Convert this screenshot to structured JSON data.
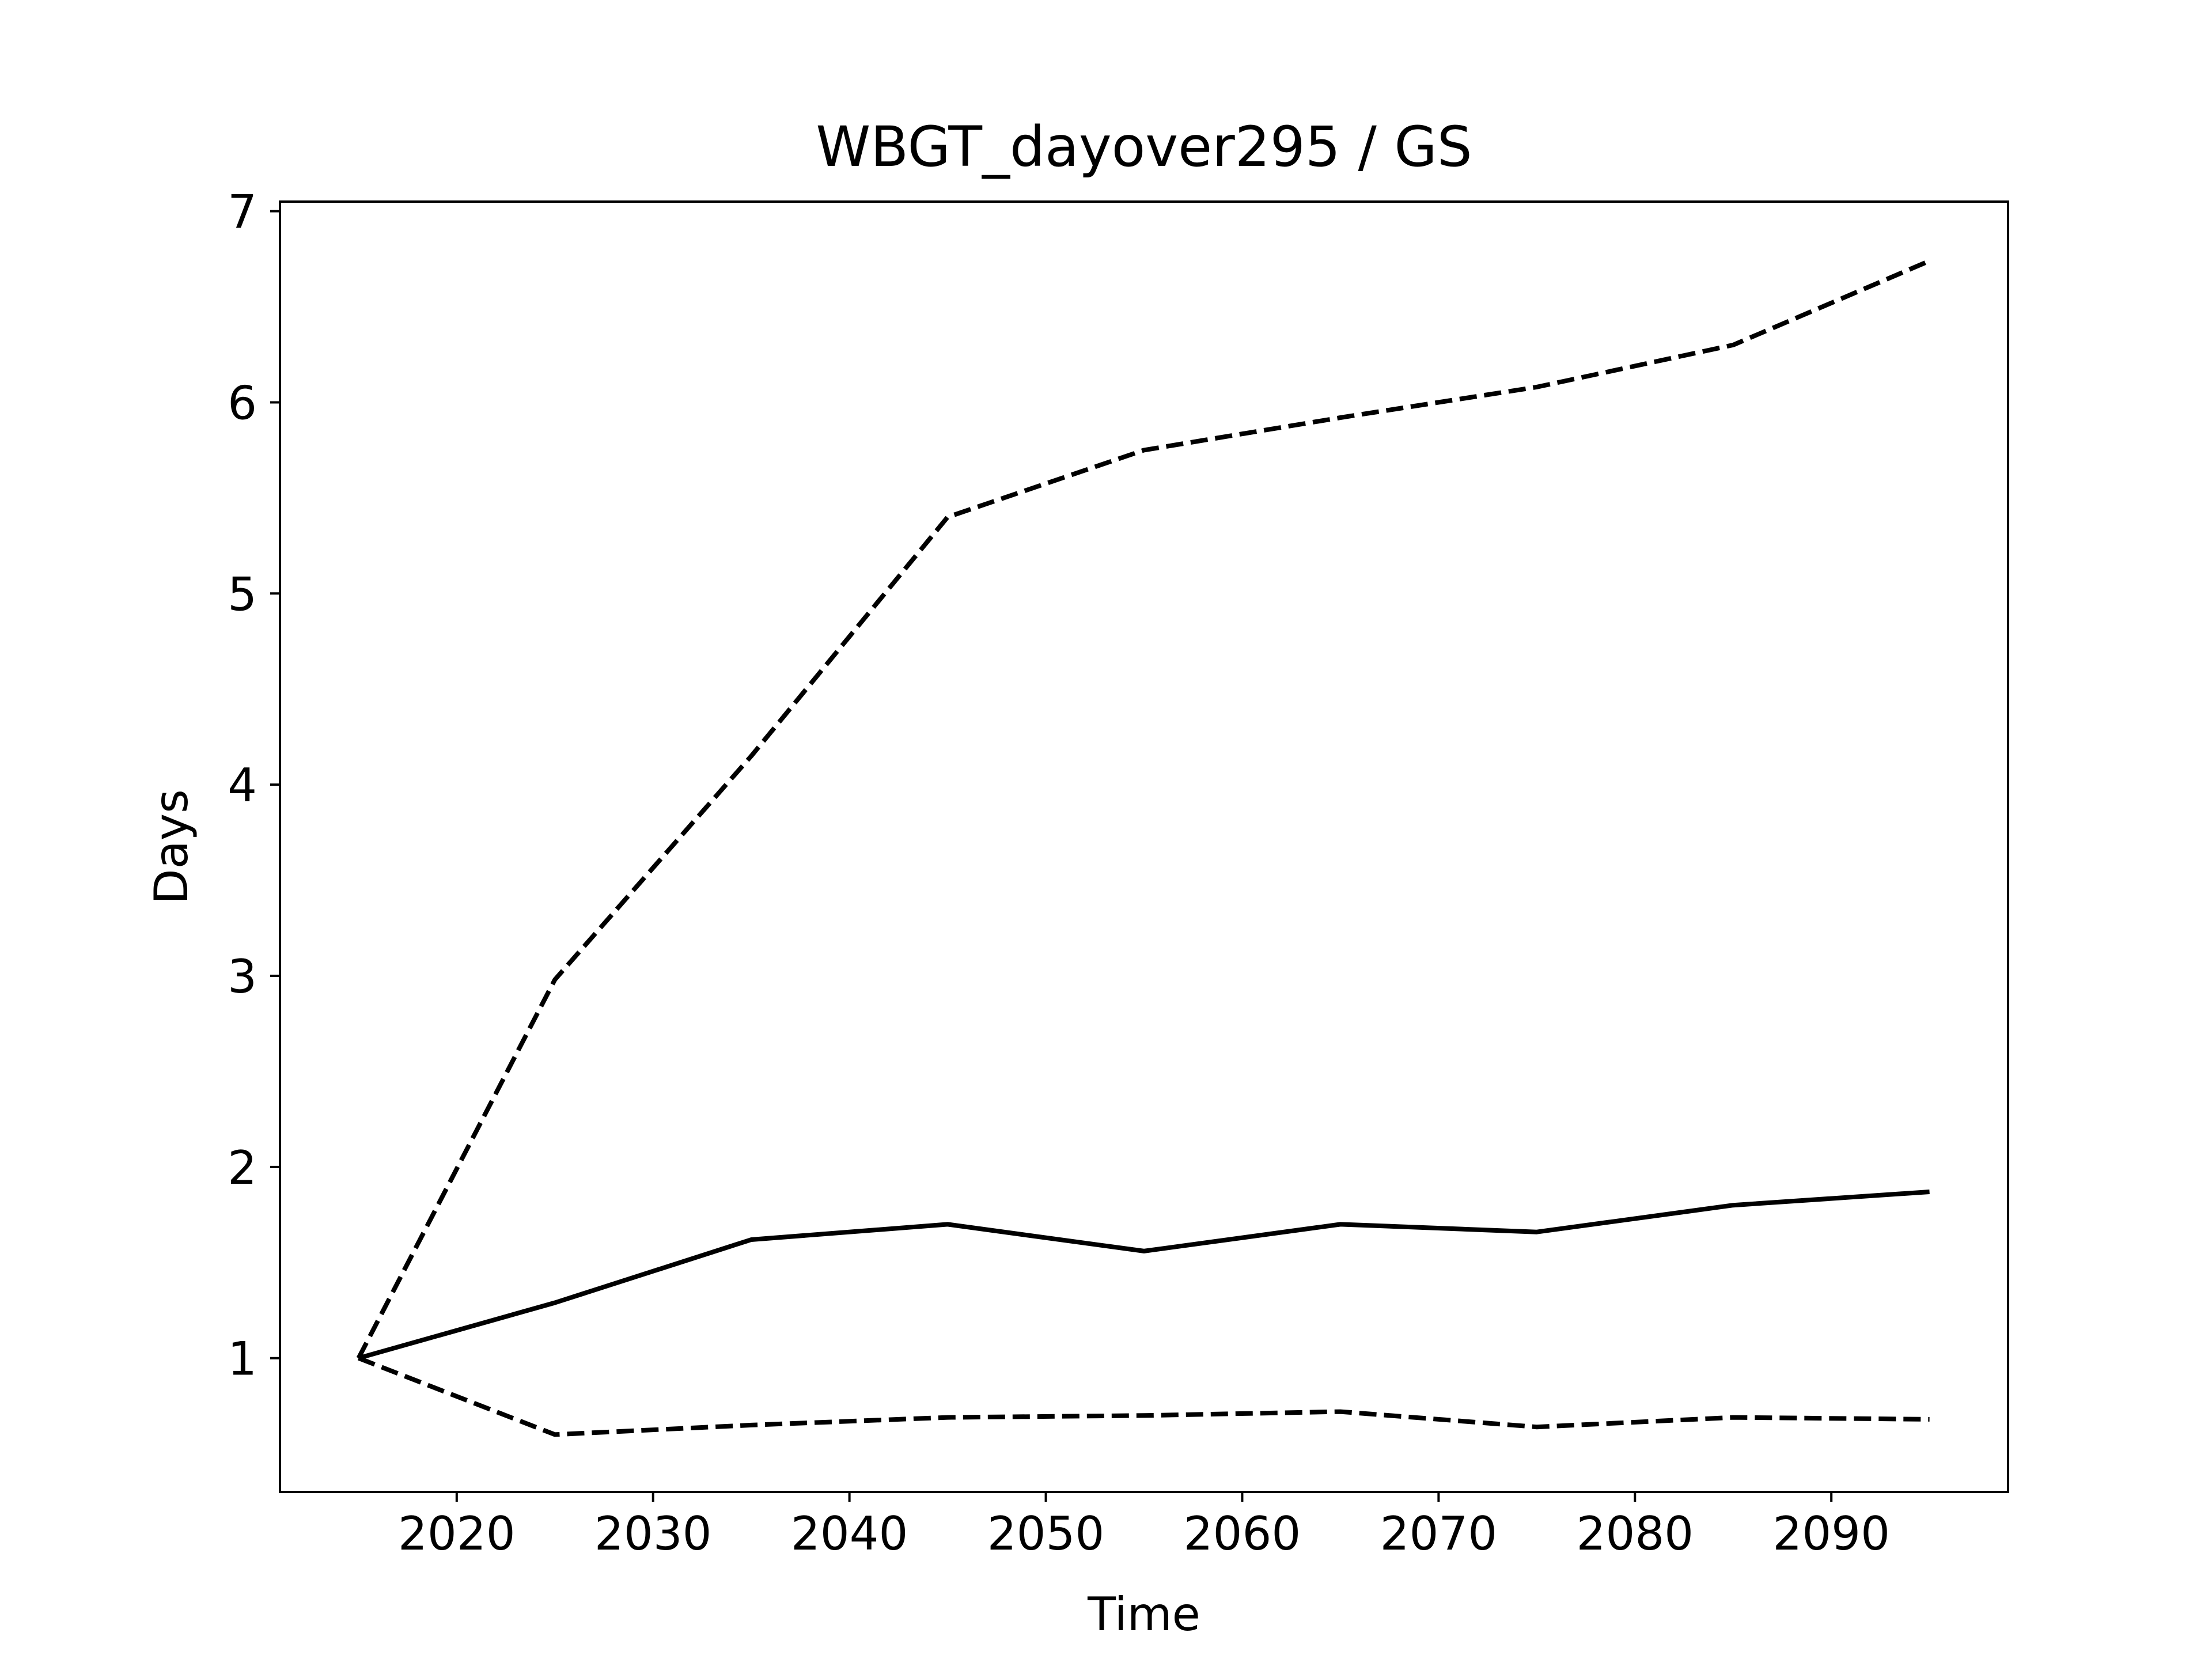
{
  "chart_data": {
    "type": "line",
    "title": "WBGT_dayover295 / GS",
    "xlabel": "Time",
    "ylabel": "Days",
    "xlim": [
      2011,
      2099
    ],
    "ylim": [
      0.3,
      7.05
    ],
    "xticks": [
      2020,
      2030,
      2040,
      2050,
      2060,
      2070,
      2080,
      2090
    ],
    "yticks": [
      1,
      2,
      3,
      4,
      5,
      6,
      7
    ],
    "grid": false,
    "legend": "none",
    "x": [
      2015,
      2025,
      2035,
      2045,
      2055,
      2065,
      2075,
      2085,
      2095
    ],
    "series": [
      {
        "style": "solid",
        "color": "#000000",
        "values": [
          1.0,
          1.29,
          1.62,
          1.7,
          1.56,
          1.7,
          1.66,
          1.8,
          1.87
        ]
      },
      {
        "style": "dashed",
        "color": "#000000",
        "values": [
          1.0,
          2.98,
          4.15,
          5.4,
          5.75,
          5.92,
          6.08,
          6.3,
          6.74
        ]
      },
      {
        "style": "dashed",
        "color": "#000000",
        "values": [
          1.0,
          0.6,
          0.65,
          0.69,
          0.7,
          0.72,
          0.64,
          0.69,
          0.68
        ]
      }
    ]
  }
}
